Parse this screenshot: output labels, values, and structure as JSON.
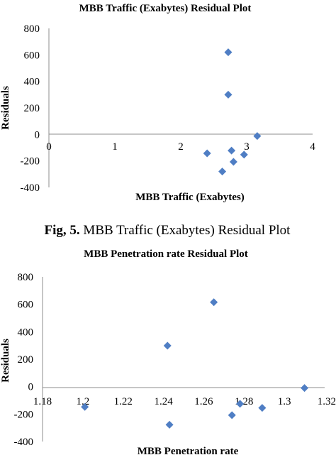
{
  "caption": {
    "prefix": "Fig, 5.",
    "text": " MBB Traffic (Exabytes) Residual Plot"
  },
  "chart_data": [
    {
      "type": "scatter",
      "title": "MBB Traffic (Exabytes)  Residual Plot",
      "xlabel": "MBB Traffic (Exabytes)",
      "ylabel": "Residuals",
      "xlim": [
        0,
        4
      ],
      "ylim": [
        -400,
        800
      ],
      "xticks": [
        0,
        1,
        2,
        3,
        4
      ],
      "xtick_labels": [
        "0",
        "1",
        "2",
        "3",
        "4"
      ],
      "yticks": [
        -400,
        -200,
        0,
        200,
        400,
        600,
        800
      ],
      "ytick_labels": [
        "-400",
        "-200",
        "0",
        "200",
        "400",
        "600",
        "800"
      ],
      "grid": false,
      "marker_color": "#4f7ec4",
      "points": [
        {
          "x": 2.4,
          "y": -143
        },
        {
          "x": 2.63,
          "y": -280
        },
        {
          "x": 2.72,
          "y": 620
        },
        {
          "x": 2.72,
          "y": 300
        },
        {
          "x": 2.77,
          "y": -122
        },
        {
          "x": 2.8,
          "y": -207
        },
        {
          "x": 2.96,
          "y": -153
        },
        {
          "x": 3.16,
          "y": -12
        }
      ]
    },
    {
      "type": "scatter",
      "title": "MBB Penetration rate  Residual Plot",
      "xlabel": "MBB Penetration rate",
      "ylabel": "Residuals",
      "xlim": [
        1.18,
        1.32
      ],
      "ylim": [
        -400,
        800
      ],
      "xticks": [
        1.18,
        1.2,
        1.22,
        1.24,
        1.26,
        1.28,
        1.3,
        1.32
      ],
      "xtick_labels": [
        "1.18",
        "1.2",
        "1.22",
        "1.24",
        "1.26",
        "1.28",
        "1.3",
        "1.32"
      ],
      "yticks": [
        -400,
        -200,
        0,
        200,
        400,
        600,
        800
      ],
      "ytick_labels": [
        "-400",
        "-200",
        "0",
        "200",
        "400",
        "600",
        "800"
      ],
      "grid": false,
      "marker_color": "#4f7ec4",
      "points": [
        {
          "x": 1.201,
          "y": -148
        },
        {
          "x": 1.242,
          "y": 298
        },
        {
          "x": 1.243,
          "y": -278
        },
        {
          "x": 1.265,
          "y": 615
        },
        {
          "x": 1.274,
          "y": -208
        },
        {
          "x": 1.278,
          "y": -125
        },
        {
          "x": 1.289,
          "y": -155
        },
        {
          "x": 1.31,
          "y": -10
        }
      ]
    }
  ]
}
